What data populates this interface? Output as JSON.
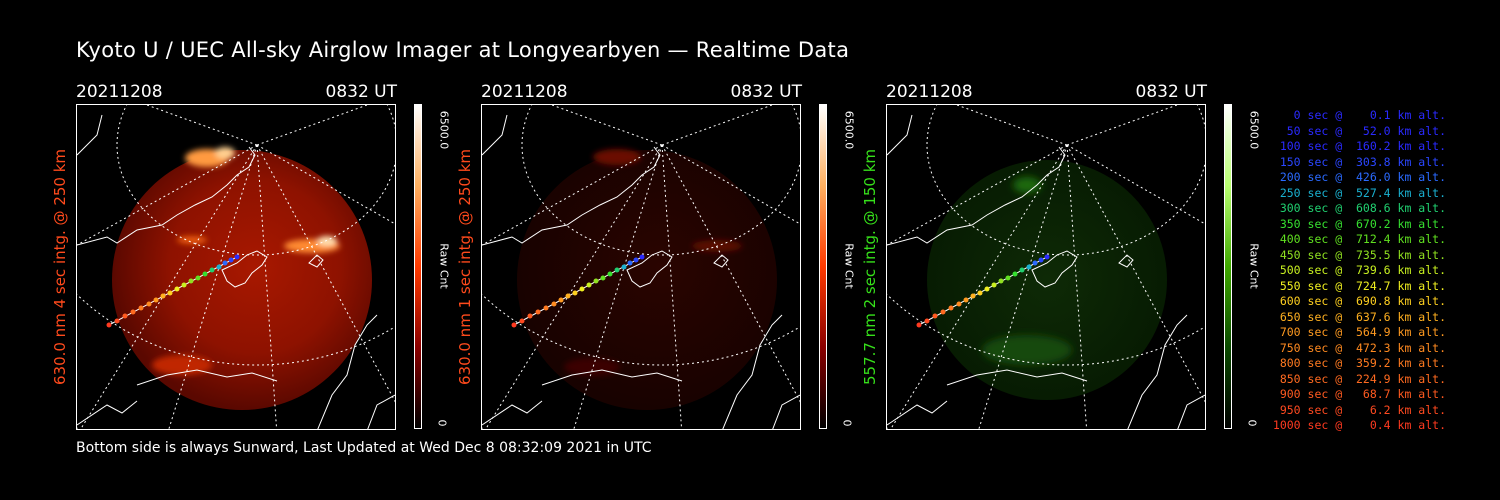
{
  "title": "Kyoto U / UEC All-sky Airglow Imager at Longyearbyen — Realtime Data",
  "footer": "Bottom side is always Sunward, Last Updated at Wed Dec  8 08:32:09 2021 in UTC",
  "panels": [
    {
      "date": "20211208",
      "time": "0832 UT",
      "ylabel": "630.0 nm 4 sec intg. @ 250 km",
      "label_color": "#ff4a1c",
      "cbar_max": "6500.0",
      "cbar_min": "0",
      "cbar_unit": "Raw Cnt",
      "cbar_colors": [
        "#000000",
        "#8a0000",
        "#ff3a00",
        "#ffb060",
        "#ffffff"
      ]
    },
    {
      "date": "20211208",
      "time": "0832 UT",
      "ylabel": "630.0 nm 1 sec intg. @ 250 km",
      "label_color": "#ff4a1c",
      "cbar_max": "6500.0",
      "cbar_min": "0",
      "cbar_unit": "Raw Cnt",
      "cbar_colors": [
        "#000000",
        "#8a0000",
        "#ff3a00",
        "#ffb060",
        "#ffffff"
      ]
    },
    {
      "date": "20211208",
      "time": "0832 UT",
      "ylabel": "557.7 nm 2 sec intg. @ 150 km",
      "label_color": "#36e01a",
      "cbar_max": "6500.0",
      "cbar_min": "0",
      "cbar_unit": "Raw Cnt",
      "cbar_colors": [
        "#000000",
        "#0a4a00",
        "#3fa800",
        "#b8ff70",
        "#ffffff"
      ]
    }
  ],
  "legend": [
    {
      "text": "   0 sec @    0.1 km alt.",
      "color": "#2a2aff"
    },
    {
      "text": "  50 sec @   52.0 km alt.",
      "color": "#2a2aff"
    },
    {
      "text": " 100 sec @  160.2 km alt.",
      "color": "#2a2aff"
    },
    {
      "text": " 150 sec @  303.8 km alt.",
      "color": "#2a46ff"
    },
    {
      "text": " 200 sec @  426.0 km alt.",
      "color": "#2a6aff"
    },
    {
      "text": " 250 sec @  527.4 km alt.",
      "color": "#1ab0d0"
    },
    {
      "text": " 300 sec @  608.6 km alt.",
      "color": "#20d070"
    },
    {
      "text": " 350 sec @  670.2 km alt.",
      "color": "#36e030"
    },
    {
      "text": " 400 sec @  712.4 km alt.",
      "color": "#60e020"
    },
    {
      "text": " 450 sec @  735.5 km alt.",
      "color": "#90e020"
    },
    {
      "text": " 500 sec @  739.6 km alt.",
      "color": "#c8f020"
    },
    {
      "text": " 550 sec @  724.7 km alt.",
      "color": "#f0f020"
    },
    {
      "text": " 600 sec @  690.8 km alt.",
      "color": "#ffd020"
    },
    {
      "text": " 650 sec @  637.6 km alt.",
      "color": "#ffb020"
    },
    {
      "text": " 700 sec @  564.9 km alt.",
      "color": "#ff9a20"
    },
    {
      "text": " 750 sec @  472.3 km alt.",
      "color": "#ff8a20"
    },
    {
      "text": " 800 sec @  359.2 km alt.",
      "color": "#ff7a20"
    },
    {
      "text": " 850 sec @  224.9 km alt.",
      "color": "#ff6a20"
    },
    {
      "text": " 900 sec @   68.7 km alt.",
      "color": "#ff5a20"
    },
    {
      "text": " 950 sec @    6.2 km alt.",
      "color": "#ff4a20"
    },
    {
      "text": "1000 sec @    0.4 km alt.",
      "color": "#ff3a20"
    }
  ]
}
